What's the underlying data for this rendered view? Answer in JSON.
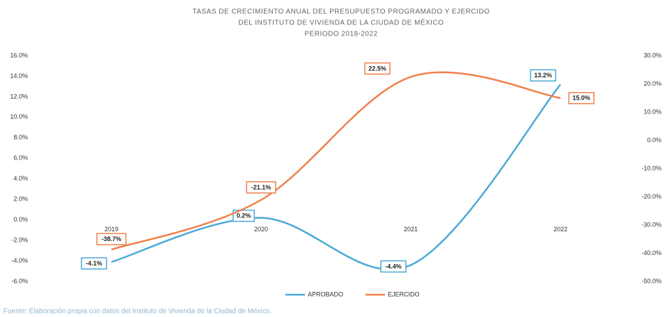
{
  "chart_data": {
    "type": "line",
    "title": [
      "TASAS DE CRECIMIENTO ANUAL DEL PRESUPUESTO PROGRAMADO Y EJERCIDO",
      "DEL INSTITUTO DE VIVIENDA DE LA CIUDAD DE MÉXICO",
      "PERIODO 2018-2022"
    ],
    "categories": [
      "2019",
      "2020",
      "2021",
      "2022"
    ],
    "series": [
      {
        "name": "APROBADO",
        "color": "#4ba9d6",
        "axis": "y",
        "values": [
          -4.1,
          0.2,
          -4.4,
          13.2
        ],
        "value_labels": [
          "-4.1%",
          "0.2%",
          "-4.4%",
          "13.2%"
        ]
      },
      {
        "name": "EJERCIDO",
        "color": "#f0814a",
        "axis": "y2",
        "values": [
          -38.7,
          -21.1,
          22.5,
          15.0
        ],
        "value_labels": [
          "-38.7%",
          "-21.1%",
          "22.5%",
          "15.0%"
        ]
      }
    ],
    "ylim": [
      -6,
      16
    ],
    "yticks": [
      {
        "value": -6,
        "label": "-6.0%"
      },
      {
        "value": -4,
        "label": "-4.0%"
      },
      {
        "value": -2,
        "label": "-2.0%"
      },
      {
        "value": 0,
        "label": "0.0%"
      },
      {
        "value": 2,
        "label": "2.0%"
      },
      {
        "value": 4,
        "label": "4.0%"
      },
      {
        "value": 6,
        "label": "6.0%"
      },
      {
        "value": 8,
        "label": "8.0%"
      },
      {
        "value": 10,
        "label": "10.0%"
      },
      {
        "value": 12,
        "label": "12.0%"
      },
      {
        "value": 14,
        "label": "14.0%"
      },
      {
        "value": 16,
        "label": "16.0%"
      }
    ],
    "y2lim": [
      -50,
      30
    ],
    "y2ticks": [
      {
        "value": -50,
        "label": "-50.0%"
      },
      {
        "value": -40,
        "label": "-40.0%"
      },
      {
        "value": -30,
        "label": "-30.0%"
      },
      {
        "value": -20,
        "label": "-20.0%"
      },
      {
        "value": -10,
        "label": "-10.0%"
      },
      {
        "value": 0,
        "label": "0.0%"
      },
      {
        "value": 10,
        "label": "10.0%"
      },
      {
        "value": 20,
        "label": "20.0%"
      },
      {
        "value": 30,
        "label": "30.0%"
      }
    ],
    "grid": false,
    "legend": "bottom",
    "source": "Fuente: Elaboración propia con datos del Instituto de Vivienda de la Ciudad de México."
  }
}
